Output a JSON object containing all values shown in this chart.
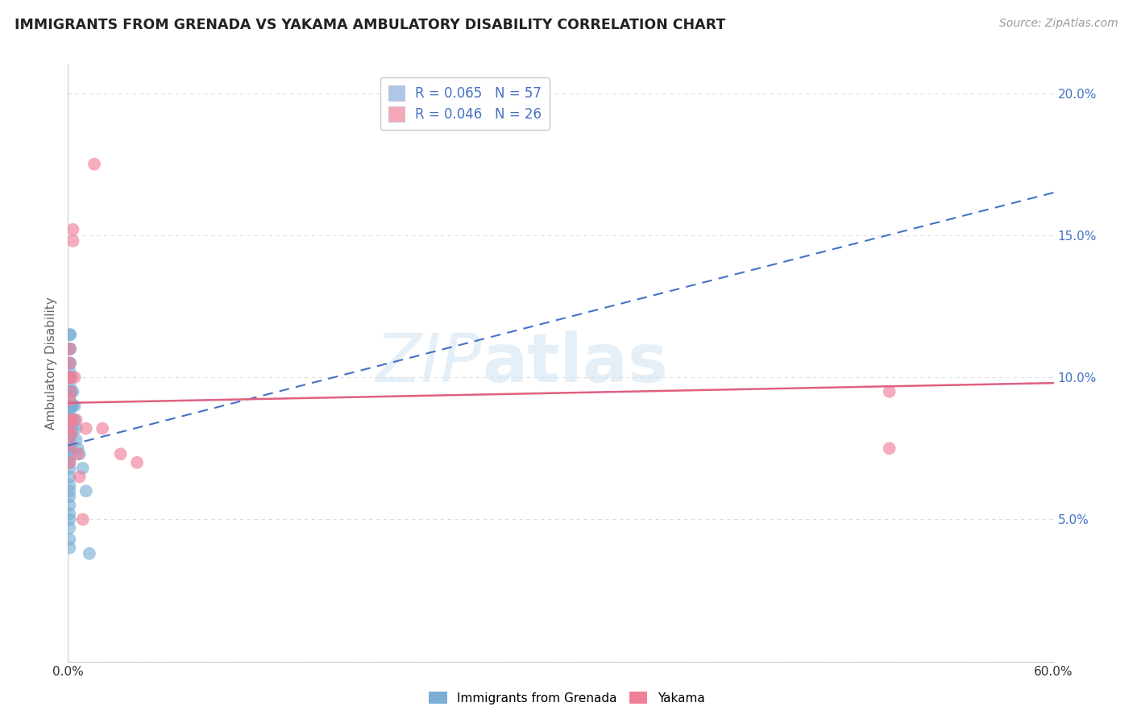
{
  "title": "IMMIGRANTS FROM GRENADA VS YAKAMA AMBULATORY DISABILITY CORRELATION CHART",
  "source": "Source: ZipAtlas.com",
  "ylabel": "Ambulatory Disability",
  "xlim": [
    0.0,
    0.6
  ],
  "ylim": [
    0.0,
    0.21
  ],
  "xticks": [
    0.0,
    0.1,
    0.2,
    0.3,
    0.4,
    0.5,
    0.6
  ],
  "yticks": [
    0.0,
    0.05,
    0.1,
    0.15,
    0.2
  ],
  "legend_entries": [
    {
      "label_r": "R = 0.065",
      "label_n": "N = 57",
      "color": "#aec6e8"
    },
    {
      "label_r": "R = 0.046",
      "label_n": "N = 26",
      "color": "#f4a8b8"
    }
  ],
  "watermark_zip": "ZIP",
  "watermark_atlas": "atlas",
  "blue_scatter": [
    [
      0.001,
      0.115
    ],
    [
      0.001,
      0.11
    ],
    [
      0.001,
      0.105
    ],
    [
      0.001,
      0.102
    ],
    [
      0.001,
      0.1
    ],
    [
      0.001,
      0.097
    ],
    [
      0.001,
      0.095
    ],
    [
      0.001,
      0.093
    ],
    [
      0.001,
      0.09
    ],
    [
      0.001,
      0.088
    ],
    [
      0.001,
      0.086
    ],
    [
      0.001,
      0.084
    ],
    [
      0.001,
      0.082
    ],
    [
      0.001,
      0.08
    ],
    [
      0.001,
      0.078
    ],
    [
      0.001,
      0.076
    ],
    [
      0.001,
      0.074
    ],
    [
      0.001,
      0.072
    ],
    [
      0.001,
      0.07
    ],
    [
      0.001,
      0.068
    ],
    [
      0.001,
      0.065
    ],
    [
      0.001,
      0.062
    ],
    [
      0.001,
      0.06
    ],
    [
      0.001,
      0.058
    ],
    [
      0.001,
      0.055
    ],
    [
      0.001,
      0.052
    ],
    [
      0.001,
      0.05
    ],
    [
      0.001,
      0.047
    ],
    [
      0.001,
      0.043
    ],
    [
      0.001,
      0.04
    ],
    [
      0.0015,
      0.115
    ],
    [
      0.0015,
      0.11
    ],
    [
      0.0015,
      0.105
    ],
    [
      0.0015,
      0.1
    ],
    [
      0.0015,
      0.095
    ],
    [
      0.0015,
      0.09
    ],
    [
      0.0015,
      0.085
    ],
    [
      0.0015,
      0.08
    ],
    [
      0.0015,
      0.075
    ],
    [
      0.002,
      0.1
    ],
    [
      0.002,
      0.095
    ],
    [
      0.002,
      0.09
    ],
    [
      0.002,
      0.085
    ],
    [
      0.002,
      0.08
    ],
    [
      0.003,
      0.095
    ],
    [
      0.003,
      0.09
    ],
    [
      0.003,
      0.085
    ],
    [
      0.003,
      0.082
    ],
    [
      0.004,
      0.09
    ],
    [
      0.004,
      0.085
    ],
    [
      0.005,
      0.082
    ],
    [
      0.005,
      0.078
    ],
    [
      0.006,
      0.075
    ],
    [
      0.007,
      0.073
    ],
    [
      0.009,
      0.068
    ],
    [
      0.011,
      0.06
    ],
    [
      0.013,
      0.038
    ]
  ],
  "pink_scatter": [
    [
      0.001,
      0.11
    ],
    [
      0.001,
      0.105
    ],
    [
      0.001,
      0.1
    ],
    [
      0.001,
      0.092
    ],
    [
      0.001,
      0.085
    ],
    [
      0.001,
      0.082
    ],
    [
      0.001,
      0.076
    ],
    [
      0.001,
      0.07
    ],
    [
      0.0015,
      0.1
    ],
    [
      0.0015,
      0.095
    ],
    [
      0.002,
      0.085
    ],
    [
      0.002,
      0.08
    ],
    [
      0.003,
      0.152
    ],
    [
      0.003,
      0.148
    ],
    [
      0.004,
      0.1
    ],
    [
      0.005,
      0.085
    ],
    [
      0.006,
      0.073
    ],
    [
      0.007,
      0.065
    ],
    [
      0.009,
      0.05
    ],
    [
      0.011,
      0.082
    ],
    [
      0.016,
      0.175
    ],
    [
      0.021,
      0.082
    ],
    [
      0.032,
      0.073
    ],
    [
      0.042,
      0.07
    ],
    [
      0.5,
      0.095
    ],
    [
      0.5,
      0.075
    ]
  ],
  "blue_line": [
    [
      0.0,
      0.076
    ],
    [
      0.6,
      0.165
    ]
  ],
  "pink_line": [
    [
      0.0,
      0.091
    ],
    [
      0.6,
      0.098
    ]
  ],
  "dot_color_blue": "#7bafd4",
  "dot_color_pink": "#f08098",
  "line_color_blue": "#4472c4",
  "line_color_pink": "#e06080",
  "background_color": "#ffffff",
  "grid_color": "#dddddd",
  "title_color": "#222222",
  "source_color": "#999999",
  "axis_label_color": "#666666",
  "tick_color_right": "#4472c4"
}
